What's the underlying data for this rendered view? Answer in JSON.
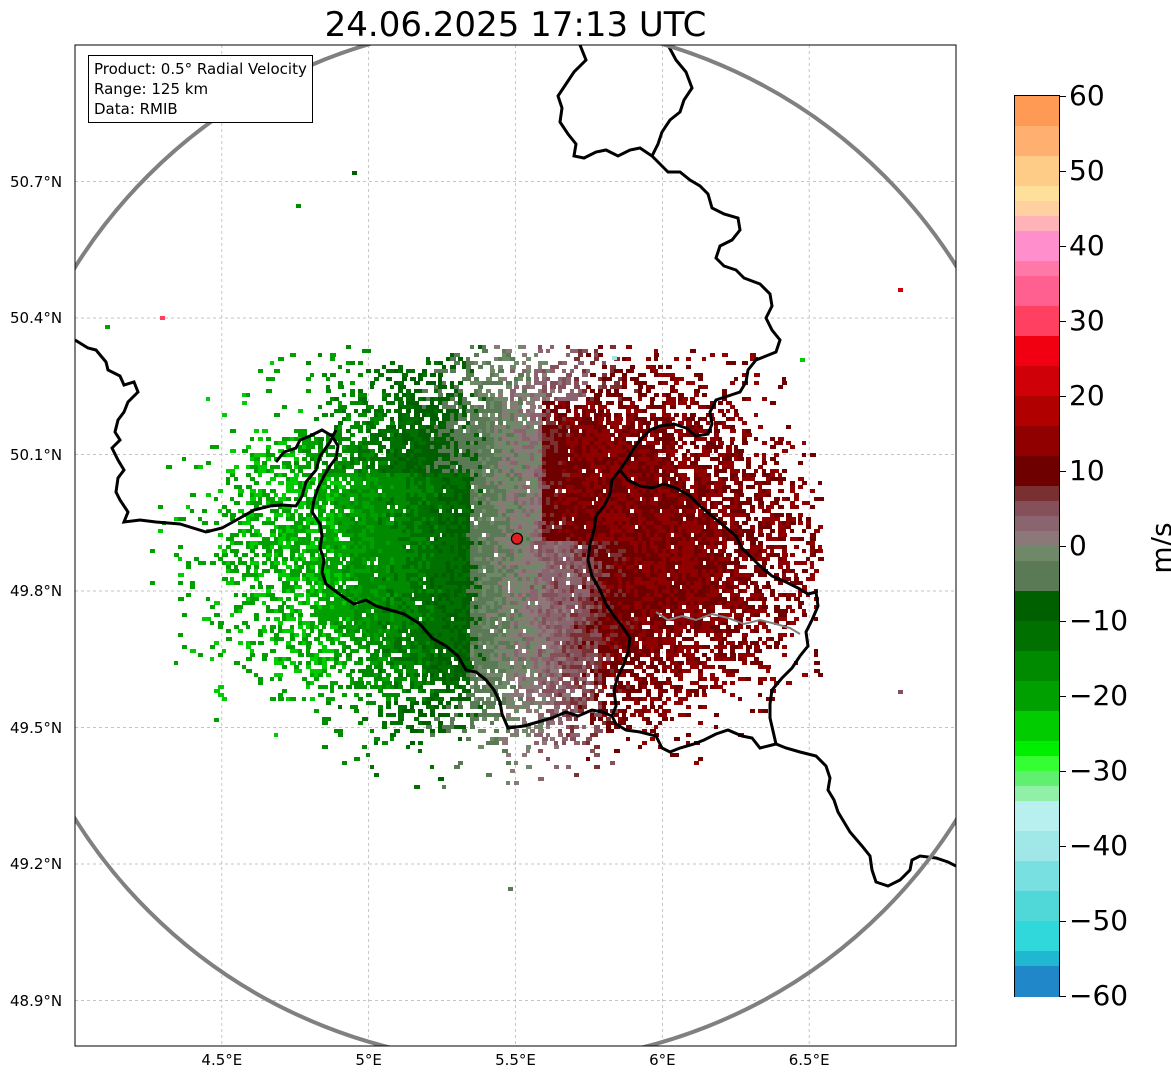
{
  "title": "24.06.2025 17:13 UTC",
  "info": {
    "product": "Product: 0.5° Radial Velocity",
    "range": "Range: 125 km",
    "data": "Data: RMIB"
  },
  "map": {
    "lon_range": [
      4.0,
      7.0
    ],
    "lat_range": [
      48.8,
      51.0
    ],
    "lat_ticks": [
      {
        "value": 50.7,
        "label": "50.7°N"
      },
      {
        "value": 50.4,
        "label": "50.4°N"
      },
      {
        "value": 50.1,
        "label": "50.1°N"
      },
      {
        "value": 49.8,
        "label": "49.8°N"
      },
      {
        "value": 49.5,
        "label": "49.5°N"
      },
      {
        "value": 49.2,
        "label": "49.2°N"
      },
      {
        "value": 48.9,
        "label": "48.9°N"
      }
    ],
    "lon_ticks": [
      {
        "value": 4.5,
        "label": "4.5°E"
      },
      {
        "value": 5.0,
        "label": "5°E"
      },
      {
        "value": 5.5,
        "label": "5.5°E"
      },
      {
        "value": 6.0,
        "label": "6°E"
      },
      {
        "value": 6.5,
        "label": "6.5°E"
      }
    ],
    "radar_site": {
      "lon": 5.505,
      "lat": 49.915,
      "color": "#e02020"
    },
    "range_ring_color": "#808080",
    "border_color": "#000000"
  },
  "colorbar": {
    "unit": "m/s",
    "min": -60,
    "max": 60,
    "ticks": [
      {
        "value": 60,
        "label": "60"
      },
      {
        "value": 50,
        "label": "50"
      },
      {
        "value": 40,
        "label": "40"
      },
      {
        "value": 30,
        "label": "30"
      },
      {
        "value": 20,
        "label": "20"
      },
      {
        "value": 10,
        "label": "10"
      },
      {
        "value": 0,
        "label": "0"
      },
      {
        "value": -10,
        "label": "−10"
      },
      {
        "value": -20,
        "label": "−20"
      },
      {
        "value": -30,
        "label": "−30"
      },
      {
        "value": -40,
        "label": "−40"
      },
      {
        "value": -50,
        "label": "−50"
      },
      {
        "value": -60,
        "label": "−60"
      }
    ],
    "stops": [
      {
        "from": 56,
        "to": 60,
        "color": "#ff9a55"
      },
      {
        "from": 52,
        "to": 56,
        "color": "#ffb070"
      },
      {
        "from": 48,
        "to": 52,
        "color": "#ffcc88"
      },
      {
        "from": 46,
        "to": 48,
        "color": "#ffe09a"
      },
      {
        "from": 44,
        "to": 46,
        "color": "#ffd0a0"
      },
      {
        "from": 42,
        "to": 44,
        "color": "#ffb3b8"
      },
      {
        "from": 38,
        "to": 42,
        "color": "#ff8fcc"
      },
      {
        "from": 36,
        "to": 38,
        "color": "#ff78a8"
      },
      {
        "from": 32,
        "to": 36,
        "color": "#ff6090"
      },
      {
        "from": 28,
        "to": 32,
        "color": "#ff4060"
      },
      {
        "from": 24,
        "to": 28,
        "color": "#f00010"
      },
      {
        "from": 20,
        "to": 24,
        "color": "#d00008"
      },
      {
        "from": 16,
        "to": 20,
        "color": "#b00000"
      },
      {
        "from": 12,
        "to": 16,
        "color": "#900000"
      },
      {
        "from": 8,
        "to": 12,
        "color": "#6f0000"
      },
      {
        "from": 6,
        "to": 8,
        "color": "#7a3030"
      },
      {
        "from": 4,
        "to": 6,
        "color": "#85505a"
      },
      {
        "from": 2,
        "to": 4,
        "color": "#8a6570"
      },
      {
        "from": 0,
        "to": 2,
        "color": "#8c7878"
      },
      {
        "from": -2,
        "to": 0,
        "color": "#6f8868"
      },
      {
        "from": -6,
        "to": -2,
        "color": "#5a7a55"
      },
      {
        "from": -10,
        "to": -6,
        "color": "#006000"
      },
      {
        "from": -14,
        "to": -10,
        "color": "#007000"
      },
      {
        "from": -18,
        "to": -14,
        "color": "#008a00"
      },
      {
        "from": -22,
        "to": -18,
        "color": "#00a000"
      },
      {
        "from": -26,
        "to": -22,
        "color": "#00cc00"
      },
      {
        "from": -28,
        "to": -26,
        "color": "#00ee00"
      },
      {
        "from": -30,
        "to": -28,
        "color": "#33ff33"
      },
      {
        "from": -32,
        "to": -30,
        "color": "#60f070"
      },
      {
        "from": -34,
        "to": -32,
        "color": "#90f0a8"
      },
      {
        "from": -38,
        "to": -34,
        "color": "#b8f0f0"
      },
      {
        "from": -42,
        "to": -38,
        "color": "#a0e8e8"
      },
      {
        "from": -46,
        "to": -42,
        "color": "#78e0e0"
      },
      {
        "from": -50,
        "to": -46,
        "color": "#50d8d8"
      },
      {
        "from": -54,
        "to": -50,
        "color": "#30d8dc"
      },
      {
        "from": -56,
        "to": -54,
        "color": "#20b8d0"
      },
      {
        "from": -60,
        "to": -56,
        "color": "#2088c8"
      }
    ]
  }
}
